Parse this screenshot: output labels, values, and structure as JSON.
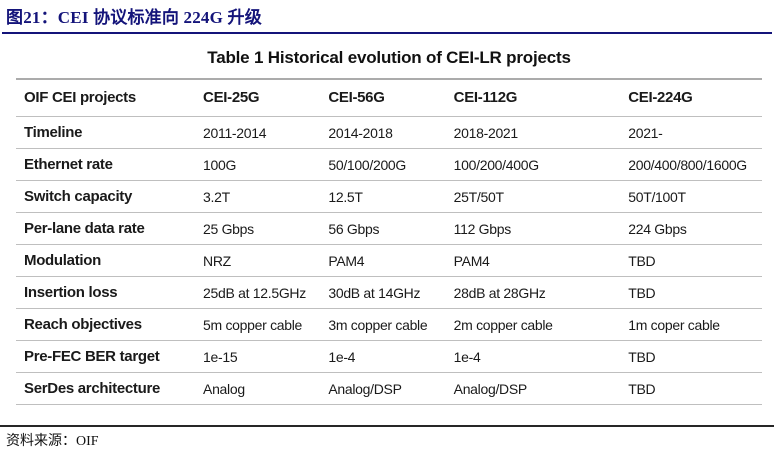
{
  "page": {
    "figure_label": "图21：CEI 协议标准向 224G 升级",
    "source_label": "资料来源：OIF",
    "accent_color": "#14147A",
    "separator_color": "#bfbfbf"
  },
  "table": {
    "title": "Table 1 Historical evolution of CEI-LR projects",
    "columns": [
      "OIF CEI projects",
      "CEI-25G",
      "CEI-56G",
      "CEI-112G",
      "CEI-224G"
    ],
    "rows": [
      {
        "label": "Timeline",
        "values": [
          "2011-2014",
          "2014-2018",
          "2018-2021",
          "2021-"
        ]
      },
      {
        "label": "Ethernet rate",
        "values": [
          "100G",
          "50/100/200G",
          "100/200/400G",
          "200/400/800/1600G"
        ]
      },
      {
        "label": "Switch capacity",
        "values": [
          "3.2T",
          "12.5T",
          "25T/50T",
          "50T/100T"
        ]
      },
      {
        "label": "Per-lane data rate",
        "values": [
          "25 Gbps",
          "56 Gbps",
          "112 Gbps",
          "224 Gbps"
        ]
      },
      {
        "label": "Modulation",
        "values": [
          "NRZ",
          "PAM4",
          "PAM4",
          "TBD"
        ]
      },
      {
        "label": "Insertion loss",
        "values": [
          "25dB at 12.5GHz",
          "30dB at 14GHz",
          "28dB at 28GHz",
          "TBD"
        ]
      },
      {
        "label": "Reach objectives",
        "values": [
          "5m copper cable",
          "3m copper cable",
          "2m copper cable",
          "1m coper cable"
        ]
      },
      {
        "label": "Pre-FEC BER target",
        "values": [
          "1e-15",
          "1e-4",
          "1e-4",
          "TBD"
        ]
      },
      {
        "label": "SerDes architecture",
        "values": [
          "Analog",
          "Analog/DSP",
          "Analog/DSP",
          "TBD"
        ]
      }
    ]
  }
}
